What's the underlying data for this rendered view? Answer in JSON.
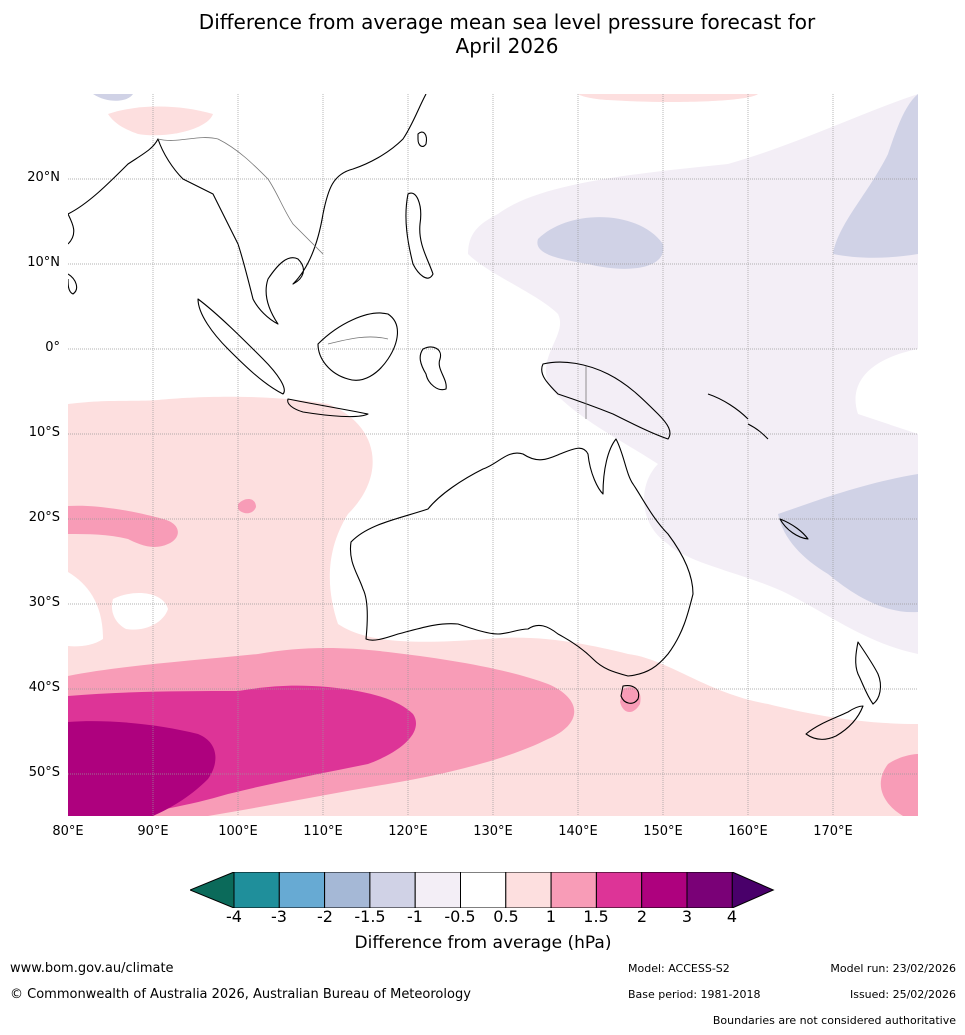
{
  "title_line1": "Difference from average mean sea level pressure forecast for",
  "title_line2": "April 2026",
  "map": {
    "lat_labels": [
      "20°N",
      "10°N",
      "0°",
      "10°S",
      "20°S",
      "30°S",
      "40°S",
      "50°S"
    ],
    "lon_labels": [
      "80°E",
      "90°E",
      "100°E",
      "110°E",
      "120°E",
      "130°E",
      "140°E",
      "150°E",
      "160°E",
      "170°E"
    ],
    "region": "Australia, Indian Ocean and Western Pacific",
    "colors": {
      "ocean": "#ffffff",
      "neg_light": "#f3eef6",
      "neg_medium": "#d0d2e6",
      "pos_light": "#fddfdf",
      "pos_medium": "#f89cb7",
      "pos_strong": "#dd3497",
      "pos_stronger": "#ae017e",
      "coast": "#000000",
      "border": "#777777"
    }
  },
  "colorbar": {
    "ticks": [
      "-4",
      "-3",
      "-2",
      "-1.5",
      "-1",
      "-0.5",
      "0.5",
      "1",
      "1.5",
      "2",
      "3",
      "4"
    ],
    "colors": [
      "#0b6a5a",
      "#1f8f9b",
      "#67aad3",
      "#a5b8d6",
      "#d0d2e6",
      "#f3eef6",
      "#ffffff",
      "#fddfdf",
      "#f89cb7",
      "#dd3497",
      "#ae017e",
      "#7a0177",
      "#49006a"
    ],
    "label": "Difference from average (hPa)"
  },
  "footer": {
    "website": "www.bom.gov.au/climate",
    "copyright": "© Commonwealth of Australia 2026, Australian Bureau of Meteorology",
    "model": "Model: ACCESS-S2",
    "base_period": "Base period: 1981-2018",
    "model_run": "Model run: 23/02/2026",
    "issued": "Issued: 25/02/2026",
    "boundaries_note": "Boundaries are not considered authoritative"
  }
}
